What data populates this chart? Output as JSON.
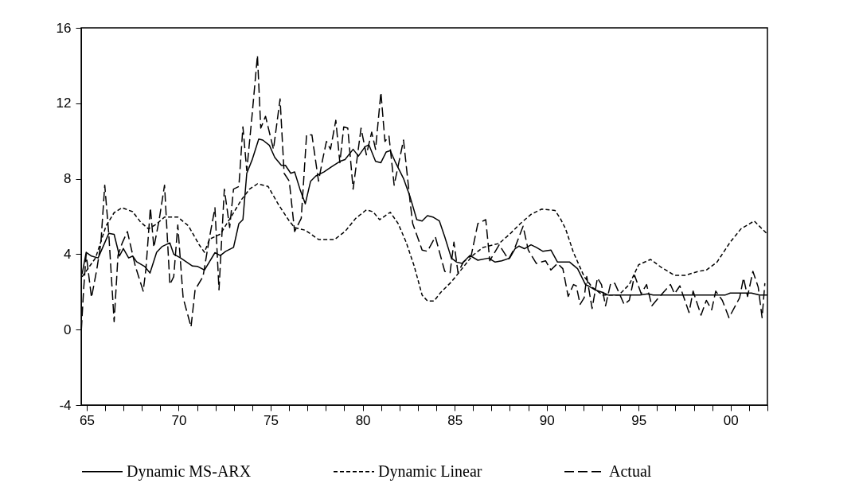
{
  "chart_data": {
    "type": "line",
    "legend": "bottom",
    "grid": false,
    "xlim": [
      1964.7,
      2002.0
    ],
    "ylim": [
      -4,
      16
    ],
    "yticks": [
      -4,
      0,
      4,
      8,
      12,
      16
    ],
    "xticks": [
      {
        "value": 1965,
        "label": "65"
      },
      {
        "value": 1966,
        "label": null
      },
      {
        "value": 1967,
        "label": null
      },
      {
        "value": 1968,
        "label": null
      },
      {
        "value": 1969,
        "label": null
      },
      {
        "value": 1970,
        "label": "70"
      },
      {
        "value": 1971,
        "label": null
      },
      {
        "value": 1972,
        "label": null
      },
      {
        "value": 1973,
        "label": null
      },
      {
        "value": 1974,
        "label": null
      },
      {
        "value": 1975,
        "label": "75"
      },
      {
        "value": 1976,
        "label": null
      },
      {
        "value": 1977,
        "label": null
      },
      {
        "value": 1978,
        "label": null
      },
      {
        "value": 1979,
        "label": null
      },
      {
        "value": 1980,
        "label": "80"
      },
      {
        "value": 1981,
        "label": null
      },
      {
        "value": 1982,
        "label": null
      },
      {
        "value": 1983,
        "label": null
      },
      {
        "value": 1984,
        "label": null
      },
      {
        "value": 1985,
        "label": "85"
      },
      {
        "value": 1986,
        "label": null
      },
      {
        "value": 1987,
        "label": null
      },
      {
        "value": 1988,
        "label": null
      },
      {
        "value": 1989,
        "label": null
      },
      {
        "value": 1990,
        "label": "90"
      },
      {
        "value": 1991,
        "label": null
      },
      {
        "value": 1992,
        "label": null
      },
      {
        "value": 1993,
        "label": null
      },
      {
        "value": 1994,
        "label": null
      },
      {
        "value": 1995,
        "label": "95"
      },
      {
        "value": 1996,
        "label": null
      },
      {
        "value": 1997,
        "label": null
      },
      {
        "value": 1998,
        "label": null
      },
      {
        "value": 1999,
        "label": null
      },
      {
        "value": 2000,
        "label": "00"
      },
      {
        "value": 2001,
        "label": null
      },
      {
        "value": 2002,
        "label": null
      }
    ],
    "series": [
      {
        "name": "Dynamic MS-ARX",
        "color": "#000000",
        "line_style": "solid",
        "x": [
          1964.75,
          1964.97,
          1965.26,
          1965.62,
          1966.2,
          1966.49,
          1966.78,
          1966.99,
          1967.28,
          1967.5,
          1967.71,
          1968.15,
          1968.44,
          1968.8,
          1969.09,
          1969.52,
          1969.73,
          1970.1,
          1970.75,
          1971.03,
          1971.4,
          1971.97,
          1972.26,
          1972.55,
          1972.98,
          1973.27,
          1973.49,
          1973.7,
          1973.99,
          1974.35,
          1974.57,
          1974.93,
          1975.22,
          1975.58,
          1975.8,
          1976.09,
          1976.3,
          1976.59,
          1976.88,
          1977.17,
          1977.46,
          1977.89,
          1978.32,
          1978.76,
          1979.04,
          1979.48,
          1979.77,
          1980.13,
          1980.34,
          1980.7,
          1980.99,
          1981.28,
          1981.5,
          1981.79,
          1982.22,
          1982.58,
          1982.94,
          1983.23,
          1983.52,
          1983.81,
          1984.17,
          1984.46,
          1984.82,
          1985.11,
          1985.4,
          1985.83,
          1986.26,
          1986.84,
          1987.2,
          1987.56,
          1987.99,
          1988.28,
          1988.5,
          1988.79,
          1989.15,
          1989.44,
          1989.8,
          1990.23,
          1990.59,
          1991.25,
          1991.68,
          1992.11,
          1992.26,
          1992.62,
          1993.05,
          1993.34,
          1995.07,
          1995.5,
          1995.79,
          1999.69,
          1999.98,
          2001.13,
          2001.57,
          2002.0
        ],
        "values": [
          2.95,
          4.1,
          3.9,
          3.8,
          5.1,
          5.05,
          3.9,
          4.3,
          3.8,
          3.9,
          3.6,
          3.35,
          3.0,
          4.1,
          4.4,
          4.6,
          4.0,
          3.8,
          3.37,
          3.35,
          3.16,
          4.08,
          3.93,
          4.15,
          4.36,
          5.62,
          5.83,
          8.29,
          9.0,
          10.1,
          10.05,
          9.77,
          9.13,
          8.71,
          8.71,
          8.29,
          8.36,
          7.45,
          6.67,
          7.87,
          8.15,
          8.36,
          8.64,
          8.92,
          9.02,
          9.56,
          9.2,
          9.7,
          9.8,
          8.92,
          8.85,
          9.42,
          9.49,
          8.85,
          8.01,
          7.03,
          5.83,
          5.76,
          6.04,
          5.97,
          5.76,
          4.92,
          3.79,
          3.58,
          3.51,
          3.93,
          3.68,
          3.79,
          3.58,
          3.65,
          3.79,
          4.29,
          4.43,
          4.29,
          4.5,
          4.36,
          4.15,
          4.22,
          3.58,
          3.58,
          3.23,
          2.39,
          2.32,
          2.11,
          1.97,
          1.83,
          1.83,
          1.9,
          1.83,
          1.83,
          1.94,
          1.94,
          1.83,
          1.83
        ]
      },
      {
        "name": "Dynamic Linear",
        "color": "#000000",
        "line_style": "dotted",
        "x": [
          1964.75,
          1965.48,
          1966.05,
          1966.49,
          1966.92,
          1967.5,
          1967.93,
          1968.36,
          1968.8,
          1969.23,
          1969.95,
          1970.53,
          1971.11,
          1971.4,
          1971.68,
          1972.26,
          1972.84,
          1973.42,
          1973.85,
          1974.28,
          1974.86,
          1975.44,
          1976.01,
          1976.3,
          1976.88,
          1977.6,
          1978.47,
          1979.04,
          1979.62,
          1980.2,
          1980.56,
          1980.92,
          1981.5,
          1981.93,
          1982.36,
          1982.8,
          1983.23,
          1983.52,
          1983.88,
          1984.24,
          1984.82,
          1985.4,
          1985.97,
          1986.55,
          1987.42,
          1987.99,
          1988.57,
          1989.15,
          1989.73,
          1990.45,
          1990.74,
          1991.03,
          1991.46,
          1992.04,
          1992.47,
          1993.05,
          1993.92,
          1994.49,
          1995.0,
          1995.65,
          1996.23,
          1996.95,
          1997.53,
          1998.25,
          1998.68,
          1999.26,
          1999.98,
          2000.56,
          2001.28,
          2002.0
        ],
        "values": [
          2.8,
          3.8,
          5.5,
          6.2,
          6.46,
          6.25,
          5.7,
          5.34,
          5.6,
          5.97,
          5.97,
          5.5,
          4.5,
          4.1,
          4.8,
          5.06,
          5.97,
          6.9,
          7.45,
          7.73,
          7.59,
          6.6,
          5.76,
          5.41,
          5.27,
          4.78,
          4.78,
          5.2,
          5.9,
          6.35,
          6.25,
          5.83,
          6.22,
          5.62,
          4.64,
          3.37,
          1.83,
          1.52,
          1.52,
          1.97,
          2.53,
          3.23,
          3.93,
          4.36,
          4.57,
          5.06,
          5.62,
          6.11,
          6.39,
          6.32,
          5.9,
          5.34,
          4.08,
          2.81,
          2.25,
          1.83,
          1.83,
          2.39,
          3.44,
          3.72,
          3.3,
          2.88,
          2.88,
          3.09,
          3.16,
          3.58,
          4.64,
          5.34,
          5.76,
          5.06
        ]
      },
      {
        "name": "Actual",
        "color": "#000000",
        "line_style": "dashed",
        "x": [
          1964.71,
          1964.83,
          1964.97,
          1965.26,
          1965.55,
          1965.77,
          1965.98,
          1966.2,
          1966.49,
          1966.7,
          1966.92,
          1967.21,
          1967.64,
          1968.07,
          1968.22,
          1968.46,
          1968.65,
          1968.94,
          1969.23,
          1969.52,
          1969.73,
          1969.95,
          1970.24,
          1970.67,
          1970.89,
          1971.32,
          1971.68,
          1971.97,
          1972.19,
          1972.48,
          1972.77,
          1972.98,
          1973.27,
          1973.49,
          1973.7,
          1973.99,
          1974.28,
          1974.46,
          1974.72,
          1975.15,
          1975.51,
          1975.73,
          1976.01,
          1976.3,
          1976.66,
          1976.95,
          1977.24,
          1977.6,
          1977.82,
          1978.03,
          1978.25,
          1978.54,
          1978.76,
          1978.97,
          1979.19,
          1979.48,
          1979.91,
          1980.2,
          1980.49,
          1980.7,
          1980.99,
          1981.21,
          1981.43,
          1981.71,
          1982.22,
          1982.58,
          1982.72,
          1983.23,
          1983.52,
          1983.95,
          1984.46,
          1984.75,
          1984.96,
          1985.18,
          1985.47,
          1985.9,
          1986.26,
          1986.69,
          1986.91,
          1987.42,
          1987.92,
          1988.28,
          1988.72,
          1989.0,
          1989.44,
          1989.94,
          1990.23,
          1990.59,
          1990.88,
          1991.17,
          1991.46,
          1991.61,
          1991.82,
          1992.04,
          1992.18,
          1992.47,
          1992.76,
          1992.98,
          1993.2,
          1993.48,
          1993.7,
          1993.99,
          1994.21,
          1994.49,
          1994.78,
          1995.14,
          1995.43,
          1995.72,
          1996.08,
          1996.73,
          1996.95,
          1997.24,
          1997.74,
          1997.96,
          1998.39,
          1998.68,
          1998.97,
          1999.19,
          1999.55,
          1999.91,
          2000.49,
          2000.7,
          2000.92,
          2001.21,
          2001.5,
          2001.71,
          2001.86
        ],
        "values": [
          0,
          2.1,
          4.0,
          1.7,
          3.2,
          4.6,
          7.66,
          5.06,
          0.42,
          3.93,
          4.57,
          5.2,
          3.37,
          2.04,
          3.23,
          6.46,
          4.36,
          5.83,
          7.66,
          2.39,
          2.81,
          5.55,
          1.69,
          0.14,
          2.11,
          2.81,
          4.92,
          6.46,
          2.11,
          7.45,
          5.41,
          7.45,
          7.59,
          10.75,
          8.43,
          11.38,
          14.54,
          10.68,
          11.31,
          9.56,
          12.23,
          8.29,
          7.87,
          5.2,
          5.9,
          10.33,
          10.33,
          7.87,
          9.0,
          9.98,
          9.56,
          11.1,
          8.85,
          10.75,
          10.68,
          7.45,
          10.68,
          9.27,
          10.47,
          9.56,
          12.58,
          9.98,
          10.26,
          7.66,
          10.05,
          6.75,
          5.62,
          4.22,
          4.15,
          4.92,
          3.09,
          3.02,
          4.64,
          3.02,
          3.58,
          3.93,
          5.62,
          5.83,
          3.65,
          4.5,
          3.72,
          4.36,
          5.48,
          4.22,
          3.51,
          3.65,
          3.16,
          3.51,
          3.23,
          1.76,
          2.39,
          2.32,
          1.34,
          1.69,
          2.81,
          1.12,
          2.74,
          2.39,
          1.26,
          2.46,
          2.46,
          1.83,
          1.34,
          1.55,
          2.88,
          1.9,
          2.39,
          1.26,
          1.69,
          2.39,
          1.9,
          2.32,
          0.91,
          2.04,
          0.77,
          1.55,
          1.05,
          2.04,
          1.55,
          0.63,
          1.69,
          2.74,
          1.76,
          3.09,
          2.25,
          0.63,
          2.46
        ]
      }
    ]
  }
}
